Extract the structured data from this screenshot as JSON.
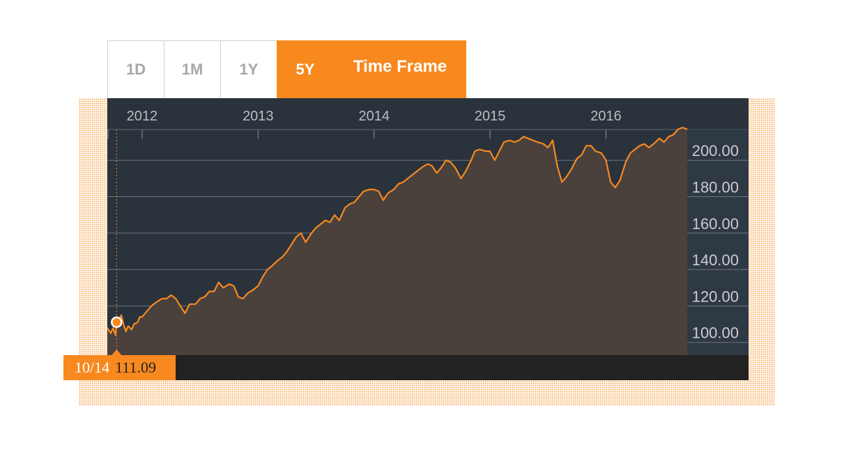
{
  "timeframe": {
    "tabs": [
      {
        "label": "1D",
        "active": false
      },
      {
        "label": "1M",
        "active": false
      },
      {
        "label": "1Y",
        "active": false
      },
      {
        "label": "5Y",
        "active": true
      }
    ],
    "label": "Time Frame"
  },
  "readout": {
    "date": "10/14",
    "value": "111.09"
  },
  "colors": {
    "accent": "#f7891f",
    "panel": "#2a323c",
    "area": "#4a413d",
    "footer": "#222222"
  },
  "chart_data": {
    "type": "area",
    "x_tick_labels": [
      "2012",
      "2013",
      "2014",
      "2015",
      "2016"
    ],
    "x_ticks": [
      2012.0,
      2013.0,
      2014.0,
      2015.0,
      2016.0
    ],
    "xlim": [
      2011.7,
      2016.7
    ],
    "y_ticks": [
      100,
      120,
      140,
      160,
      180,
      200
    ],
    "y_tick_labels": [
      "100.00",
      "120.00",
      "140.00",
      "160.00",
      "180.00",
      "200.00"
    ],
    "ylim": [
      93,
      215
    ],
    "grid": true,
    "marker": {
      "x": 2011.78,
      "y": 111.09
    },
    "series": [
      {
        "points": [
          [
            2011.7,
            108
          ],
          [
            2011.73,
            105
          ],
          [
            2011.75,
            108
          ],
          [
            2011.77,
            104
          ],
          [
            2011.78,
            111.09
          ],
          [
            2011.8,
            112
          ],
          [
            2011.82,
            115
          ],
          [
            2011.84,
            110
          ],
          [
            2011.86,
            106
          ],
          [
            2011.88,
            109
          ],
          [
            2011.91,
            107
          ],
          [
            2011.93,
            110
          ],
          [
            2011.96,
            111
          ],
          [
            2011.98,
            114
          ],
          [
            2012.0,
            114
          ],
          [
            2012.04,
            117
          ],
          [
            2012.08,
            120
          ],
          [
            2012.12,
            122
          ],
          [
            2012.17,
            124
          ],
          [
            2012.21,
            124
          ],
          [
            2012.25,
            126
          ],
          [
            2012.29,
            124
          ],
          [
            2012.33,
            120
          ],
          [
            2012.37,
            116
          ],
          [
            2012.41,
            121
          ],
          [
            2012.46,
            121
          ],
          [
            2012.5,
            124
          ],
          [
            2012.54,
            125
          ],
          [
            2012.58,
            128
          ],
          [
            2012.62,
            128
          ],
          [
            2012.66,
            133
          ],
          [
            2012.7,
            130
          ],
          [
            2012.75,
            132
          ],
          [
            2012.79,
            131
          ],
          [
            2012.83,
            125
          ],
          [
            2012.87,
            124
          ],
          [
            2012.91,
            127
          ],
          [
            2012.96,
            129
          ],
          [
            2013.0,
            131
          ],
          [
            2013.04,
            136
          ],
          [
            2013.08,
            140
          ],
          [
            2013.12,
            142
          ],
          [
            2013.17,
            145
          ],
          [
            2013.21,
            147
          ],
          [
            2013.25,
            150
          ],
          [
            2013.29,
            154
          ],
          [
            2013.33,
            158
          ],
          [
            2013.37,
            160
          ],
          [
            2013.41,
            155
          ],
          [
            2013.46,
            160
          ],
          [
            2013.5,
            163
          ],
          [
            2013.54,
            165
          ],
          [
            2013.58,
            167
          ],
          [
            2013.62,
            166
          ],
          [
            2013.66,
            170
          ],
          [
            2013.7,
            167
          ],
          [
            2013.75,
            174
          ],
          [
            2013.79,
            176
          ],
          [
            2013.83,
            177
          ],
          [
            2013.87,
            180
          ],
          [
            2013.91,
            183
          ],
          [
            2013.96,
            184
          ],
          [
            2014.0,
            184
          ],
          [
            2014.04,
            183
          ],
          [
            2014.08,
            178
          ],
          [
            2014.12,
            182
          ],
          [
            2014.17,
            184
          ],
          [
            2014.21,
            187
          ],
          [
            2014.25,
            188
          ],
          [
            2014.29,
            190
          ],
          [
            2014.33,
            192
          ],
          [
            2014.37,
            194
          ],
          [
            2014.41,
            196
          ],
          [
            2014.46,
            198
          ],
          [
            2014.5,
            197
          ],
          [
            2014.54,
            193
          ],
          [
            2014.58,
            196
          ],
          [
            2014.62,
            200
          ],
          [
            2014.66,
            199
          ],
          [
            2014.7,
            196
          ],
          [
            2014.75,
            190
          ],
          [
            2014.79,
            194
          ],
          [
            2014.83,
            199
          ],
          [
            2014.87,
            205
          ],
          [
            2014.91,
            206
          ],
          [
            2014.96,
            205
          ],
          [
            2015.0,
            205
          ],
          [
            2015.04,
            200
          ],
          [
            2015.08,
            205
          ],
          [
            2015.12,
            210
          ],
          [
            2015.17,
            211
          ],
          [
            2015.21,
            210
          ],
          [
            2015.25,
            211
          ],
          [
            2015.29,
            213
          ],
          [
            2015.33,
            212
          ],
          [
            2015.37,
            211
          ],
          [
            2015.41,
            210
          ],
          [
            2015.46,
            209
          ],
          [
            2015.5,
            207
          ],
          [
            2015.54,
            211
          ],
          [
            2015.58,
            197
          ],
          [
            2015.62,
            188
          ],
          [
            2015.66,
            191
          ],
          [
            2015.7,
            195
          ],
          [
            2015.75,
            201
          ],
          [
            2015.79,
            203
          ],
          [
            2015.83,
            208
          ],
          [
            2015.87,
            208
          ],
          [
            2015.91,
            205
          ],
          [
            2015.96,
            204
          ],
          [
            2016.0,
            200
          ],
          [
            2016.04,
            188
          ],
          [
            2016.08,
            185
          ],
          [
            2016.12,
            189
          ],
          [
            2016.17,
            199
          ],
          [
            2016.21,
            204
          ],
          [
            2016.25,
            206
          ],
          [
            2016.29,
            208
          ],
          [
            2016.33,
            209
          ],
          [
            2016.37,
            207
          ],
          [
            2016.41,
            209
          ],
          [
            2016.46,
            212
          ],
          [
            2016.5,
            210
          ],
          [
            2016.54,
            213
          ],
          [
            2016.58,
            214
          ],
          [
            2016.62,
            217
          ],
          [
            2016.66,
            218
          ],
          [
            2016.7,
            217
          ]
        ]
      }
    ]
  }
}
